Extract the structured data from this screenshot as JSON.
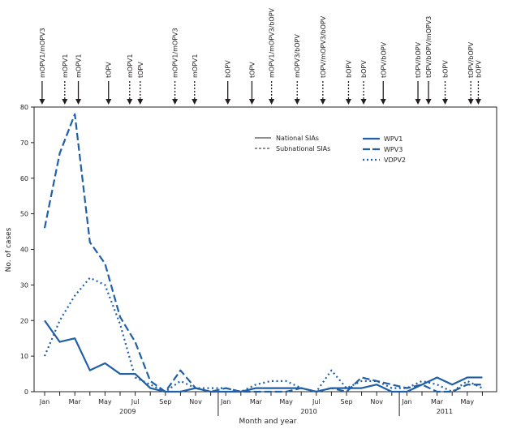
{
  "chart_data": {
    "type": "line",
    "xlabel": "Month and year",
    "ylabel": "No. of cases",
    "ylim": [
      0,
      80
    ],
    "yticks": [
      0,
      10,
      20,
      30,
      40,
      50,
      60,
      70,
      80
    ],
    "x_start": "2009-01",
    "x_end": "2011-06",
    "month_tick_labels": [
      "Jan",
      "Mar",
      "May",
      "Jul",
      "Sep",
      "Nov"
    ],
    "years": [
      "2009",
      "2010",
      "2011"
    ],
    "grid": false,
    "color": "#1f5fa6",
    "series": [
      {
        "name": "WPV1",
        "style": "solid",
        "values": [
          20,
          14,
          15,
          6,
          8,
          5,
          5,
          1,
          0,
          0,
          1,
          0,
          0,
          0,
          1,
          1,
          1,
          1,
          0,
          1,
          1,
          1,
          2,
          0,
          0,
          2,
          4,
          2,
          4,
          4
        ]
      },
      {
        "name": "WPV3",
        "style": "dashed",
        "values": [
          46,
          67,
          78,
          42,
          36,
          21,
          14,
          3,
          0,
          6,
          1,
          0,
          1,
          0,
          0,
          0,
          0,
          1,
          0,
          1,
          0,
          4,
          3,
          2,
          1,
          2,
          0,
          0,
          2,
          2
        ]
      },
      {
        "name": "VDPV2",
        "style": "dotted",
        "values": [
          10,
          20,
          27,
          32,
          30,
          19,
          4,
          2,
          0,
          3,
          1,
          1,
          1,
          0,
          2,
          3,
          3,
          1,
          0,
          6,
          1,
          3,
          3,
          1,
          1,
          3,
          2,
          0,
          3,
          1
        ]
      }
    ],
    "sia_legend": [
      {
        "name": "National SIAs",
        "style": "solid"
      },
      {
        "name": "Subnational SIAs",
        "style": "dashed"
      }
    ],
    "sias": [
      {
        "date": "2009-01-10",
        "label": "mOPV1/mOPV3",
        "type": "national"
      },
      {
        "date": "2009-02-25",
        "label": "mOPV1",
        "type": "subnational"
      },
      {
        "date": "2009-03-22",
        "label": "mOPV1",
        "type": "national"
      },
      {
        "date": "2009-05-22",
        "label": "tOPV",
        "type": "national"
      },
      {
        "date": "2009-07-04",
        "label": "mOPV1",
        "type": "subnational"
      },
      {
        "date": "2009-07-25",
        "label": "tOPV",
        "type": "subnational"
      },
      {
        "date": "2009-10-04",
        "label": "mOPV1/mOPV3",
        "type": "subnational"
      },
      {
        "date": "2009-11-13",
        "label": "mOPV1",
        "type": "subnational"
      },
      {
        "date": "2010-01-19",
        "label": "bOPV",
        "type": "national"
      },
      {
        "date": "2010-03-07",
        "label": "tOPV",
        "type": "national"
      },
      {
        "date": "2010-04-16",
        "label": "mOPV1/mOPV3/bOPV",
        "type": "subnational"
      },
      {
        "date": "2010-06-07",
        "label": "mOPV3/bOPV",
        "type": "subnational"
      },
      {
        "date": "2010-07-28",
        "label": "tOPV/mOPV3/bOPV",
        "type": "subnational"
      },
      {
        "date": "2010-09-19",
        "label": "bOPV",
        "type": "subnational"
      },
      {
        "date": "2010-10-19",
        "label": "bOPV",
        "type": "subnational"
      },
      {
        "date": "2010-11-28",
        "label": "tOPV/bOPV",
        "type": "national"
      },
      {
        "date": "2011-02-07",
        "label": "tOPV/bOPV",
        "type": "national"
      },
      {
        "date": "2011-02-28",
        "label": "tOPV/bOPV/mOPV3",
        "type": "national"
      },
      {
        "date": "2011-04-01",
        "label": "bOPV",
        "type": "subnational"
      },
      {
        "date": "2011-05-22",
        "label": "tOPV/bOPV",
        "type": "subnational"
      },
      {
        "date": "2011-06-07",
        "label": "bOPV",
        "type": "subnational"
      }
    ]
  }
}
